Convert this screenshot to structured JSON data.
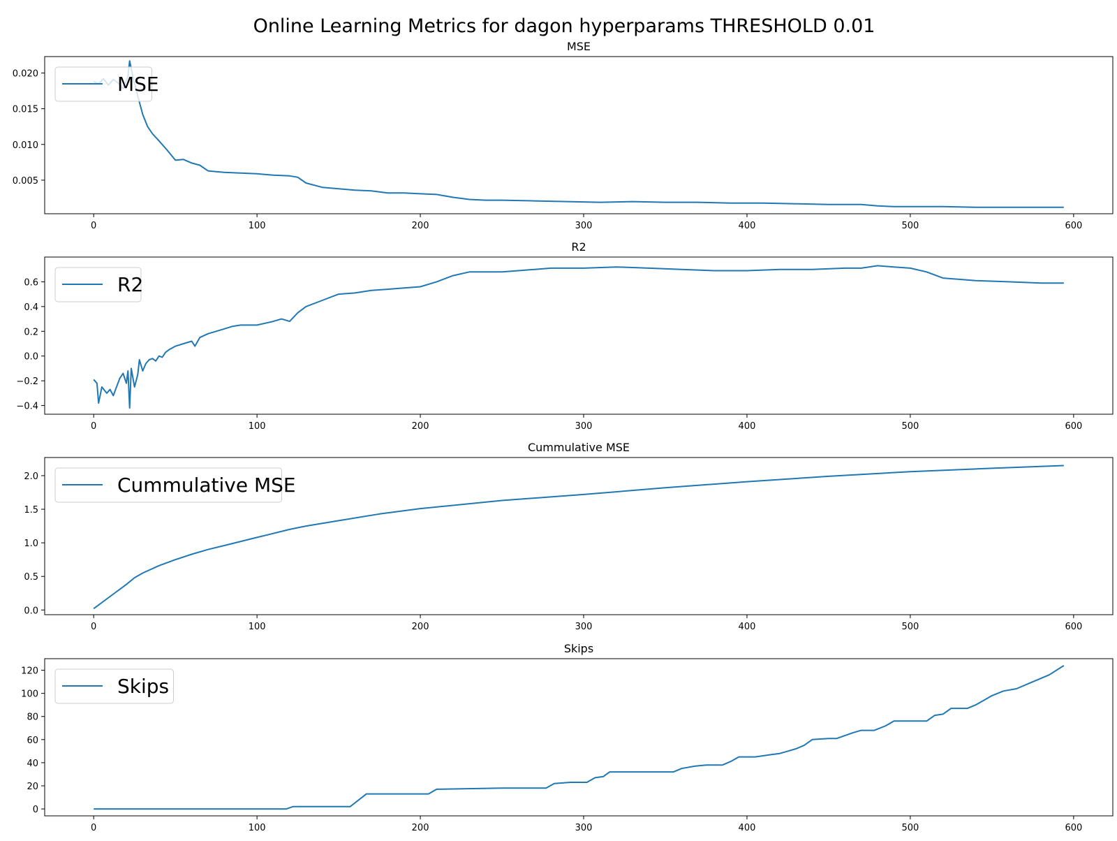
{
  "figure": {
    "title": "Online Learning Metrics for dagon hyperparams THRESHOLD 0.01",
    "line_color": "#1f77b4"
  },
  "chart_data": [
    {
      "type": "line",
      "title": "MSE",
      "xlabel": "",
      "ylabel": "",
      "xlim": [
        -30,
        624
      ],
      "ylim": [
        0.0003,
        0.0223
      ],
      "x_ticks": [
        0,
        100,
        200,
        300,
        400,
        500,
        600
      ],
      "x_tick_labels": [
        "0",
        "100",
        "200",
        "300",
        "400",
        "500",
        "600"
      ],
      "y_ticks": [
        0.005,
        0.01,
        0.015,
        0.02
      ],
      "y_tick_labels": [
        "0.005",
        "0.010",
        "0.015",
        "0.020"
      ],
      "grid": false,
      "legend_position": "upper-left",
      "series": [
        {
          "name": "MSE",
          "x": [
            0,
            3,
            6,
            9,
            12,
            15,
            18,
            21,
            22,
            24,
            27,
            30,
            33,
            36,
            40,
            45,
            50,
            55,
            60,
            65,
            70,
            75,
            80,
            90,
            100,
            110,
            120,
            125,
            130,
            140,
            150,
            160,
            170,
            180,
            190,
            200,
            210,
            220,
            230,
            240,
            250,
            270,
            290,
            310,
            330,
            350,
            370,
            390,
            410,
            430,
            450,
            470,
            480,
            490,
            500,
            520,
            540,
            560,
            580,
            594
          ],
          "y": [
            0.0188,
            0.0185,
            0.0192,
            0.0183,
            0.0191,
            0.0186,
            0.0178,
            0.0195,
            0.0217,
            0.0195,
            0.0168,
            0.0142,
            0.0125,
            0.0115,
            0.0105,
            0.0092,
            0.0078,
            0.0079,
            0.0074,
            0.0071,
            0.0063,
            0.0062,
            0.0061,
            0.006,
            0.0059,
            0.0057,
            0.0056,
            0.0054,
            0.0046,
            0.004,
            0.0038,
            0.0036,
            0.0035,
            0.0032,
            0.0032,
            0.0031,
            0.003,
            0.0026,
            0.0023,
            0.0022,
            0.0022,
            0.0021,
            0.002,
            0.0019,
            0.002,
            0.0019,
            0.0019,
            0.0018,
            0.0018,
            0.0017,
            0.0016,
            0.0016,
            0.0014,
            0.0013,
            0.0013,
            0.0013,
            0.0012,
            0.0012,
            0.0012,
            0.0012
          ]
        }
      ]
    },
    {
      "type": "line",
      "title": "R2",
      "xlabel": "",
      "ylabel": "",
      "xlim": [
        -30,
        624
      ],
      "ylim": [
        -0.47,
        0.8
      ],
      "x_ticks": [
        0,
        100,
        200,
        300,
        400,
        500,
        600
      ],
      "x_tick_labels": [
        "0",
        "100",
        "200",
        "300",
        "400",
        "500",
        "600"
      ],
      "y_ticks": [
        -0.4,
        -0.2,
        0.0,
        0.2,
        0.4,
        0.6
      ],
      "y_tick_labels": [
        "−0.4",
        "−0.2",
        "0.0",
        "0.2",
        "0.4",
        "0.6"
      ],
      "grid": false,
      "legend_position": "upper-left",
      "series": [
        {
          "name": "R2",
          "x": [
            0,
            2,
            3,
            5,
            8,
            10,
            12,
            14,
            16,
            18,
            20,
            21,
            22,
            23,
            25,
            27,
            28,
            30,
            32,
            34,
            36,
            38,
            40,
            42,
            44,
            46,
            50,
            55,
            60,
            62,
            65,
            70,
            75,
            80,
            85,
            90,
            100,
            110,
            115,
            120,
            125,
            130,
            140,
            150,
            160,
            170,
            180,
            190,
            200,
            210,
            220,
            230,
            240,
            250,
            260,
            270,
            280,
            290,
            300,
            320,
            340,
            360,
            380,
            400,
            420,
            440,
            460,
            470,
            480,
            490,
            500,
            510,
            520,
            530,
            540,
            560,
            580,
            594
          ],
          "y": [
            -0.19,
            -0.22,
            -0.38,
            -0.25,
            -0.3,
            -0.27,
            -0.32,
            -0.25,
            -0.18,
            -0.14,
            -0.22,
            -0.12,
            -0.42,
            -0.1,
            -0.25,
            -0.15,
            -0.03,
            -0.12,
            -0.06,
            -0.03,
            -0.02,
            -0.04,
            0.0,
            -0.01,
            0.03,
            0.05,
            0.08,
            0.1,
            0.12,
            0.08,
            0.15,
            0.18,
            0.2,
            0.22,
            0.24,
            0.25,
            0.25,
            0.28,
            0.3,
            0.28,
            0.35,
            0.4,
            0.45,
            0.5,
            0.51,
            0.53,
            0.54,
            0.55,
            0.56,
            0.6,
            0.65,
            0.68,
            0.68,
            0.68,
            0.69,
            0.7,
            0.71,
            0.71,
            0.71,
            0.72,
            0.71,
            0.7,
            0.69,
            0.69,
            0.7,
            0.7,
            0.71,
            0.71,
            0.73,
            0.72,
            0.71,
            0.68,
            0.63,
            0.62,
            0.61,
            0.6,
            0.59,
            0.59
          ]
        }
      ]
    },
    {
      "type": "line",
      "title": "Cummulative MSE",
      "xlabel": "",
      "ylabel": "",
      "xlim": [
        -30,
        624
      ],
      "ylim": [
        -0.07,
        2.27
      ],
      "x_ticks": [
        0,
        100,
        200,
        300,
        400,
        500,
        600
      ],
      "x_tick_labels": [
        "0",
        "100",
        "200",
        "300",
        "400",
        "500",
        "600"
      ],
      "y_ticks": [
        0.0,
        0.5,
        1.0,
        1.5,
        2.0
      ],
      "y_tick_labels": [
        "0.0",
        "0.5",
        "1.0",
        "1.5",
        "2.0"
      ],
      "grid": false,
      "legend_position": "upper-left",
      "series": [
        {
          "name": "Cummulative MSE",
          "x": [
            0,
            10,
            20,
            25,
            30,
            40,
            50,
            60,
            70,
            80,
            100,
            120,
            130,
            150,
            175,
            200,
            250,
            300,
            350,
            400,
            450,
            500,
            550,
            594
          ],
          "y": [
            0.02,
            0.2,
            0.38,
            0.48,
            0.55,
            0.66,
            0.75,
            0.83,
            0.9,
            0.96,
            1.08,
            1.2,
            1.25,
            1.33,
            1.43,
            1.51,
            1.63,
            1.72,
            1.82,
            1.91,
            1.99,
            2.06,
            2.11,
            2.15
          ]
        }
      ]
    },
    {
      "type": "line",
      "title": "Skips",
      "xlabel": "",
      "ylabel": "",
      "xlim": [
        -30,
        624
      ],
      "ylim": [
        -6,
        130
      ],
      "x_ticks": [
        0,
        100,
        200,
        300,
        400,
        500,
        600
      ],
      "x_tick_labels": [
        "0",
        "100",
        "200",
        "300",
        "400",
        "500",
        "600"
      ],
      "y_ticks": [
        0,
        20,
        40,
        60,
        80,
        100,
        120
      ],
      "y_tick_labels": [
        "0",
        "20",
        "40",
        "60",
        "80",
        "100",
        "120"
      ],
      "grid": false,
      "legend_position": "upper-left",
      "series": [
        {
          "name": "Skips",
          "x": [
            0,
            118,
            122,
            157,
            167,
            205,
            210,
            250,
            277,
            282,
            292,
            302,
            307,
            312,
            316,
            355,
            360,
            368,
            375,
            385,
            390,
            395,
            405,
            415,
            420,
            425,
            430,
            435,
            440,
            450,
            455,
            465,
            470,
            478,
            485,
            490,
            510,
            515,
            520,
            525,
            535,
            540,
            545,
            550,
            557,
            565,
            575,
            585,
            594
          ],
          "y": [
            0,
            0,
            2,
            2,
            13,
            13,
            17,
            18,
            18,
            22,
            23,
            23,
            27,
            28,
            32,
            32,
            35,
            37,
            38,
            38,
            41,
            45,
            45,
            47,
            48,
            50,
            52,
            55,
            60,
            61,
            61,
            66,
            68,
            68,
            72,
            76,
            76,
            81,
            82,
            87,
            87,
            90,
            94,
            98,
            102,
            104,
            110,
            116,
            124
          ]
        }
      ]
    }
  ]
}
